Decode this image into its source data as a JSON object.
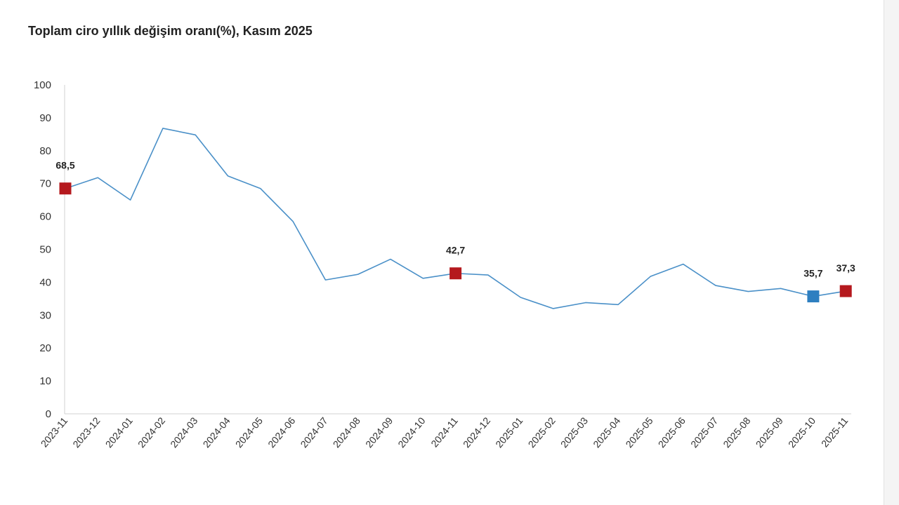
{
  "chart_data": {
    "type": "line",
    "title": "Toplam ciro yıllık değişim oranı(%), Kasım 2025",
    "xlabel": "",
    "ylabel": "",
    "ylim": [
      0,
      100
    ],
    "yticks": [
      0,
      10,
      20,
      30,
      40,
      50,
      60,
      70,
      80,
      90,
      100
    ],
    "categories": [
      "2023-11",
      "2023-12",
      "2024-01",
      "2024-02",
      "2024-03",
      "2024-04",
      "2024-05",
      "2024-06",
      "2024-07",
      "2024-08",
      "2024-09",
      "2024-10",
      "2024-11",
      "2024-12",
      "2025-01",
      "2025-02",
      "2025-03",
      "2025-04",
      "2025-05",
      "2025-06",
      "2025-07",
      "2025-08",
      "2025-09",
      "2025-10",
      "2025-11"
    ],
    "series": [
      {
        "name": "Toplam ciro yıllık değişim oranı",
        "color": "#4a90c8",
        "values": [
          68.5,
          71.8,
          65.0,
          86.8,
          84.8,
          72.3,
          68.5,
          58.5,
          40.7,
          42.4,
          47.0,
          41.2,
          42.7,
          42.2,
          35.4,
          32.0,
          33.8,
          33.2,
          41.8,
          45.5,
          39.0,
          37.2,
          38.1,
          35.7,
          37.3
        ]
      }
    ],
    "markers": [
      {
        "index": 0,
        "label": "68,5",
        "color": "#b5191e"
      },
      {
        "index": 12,
        "label": "42,7",
        "color": "#b5191e"
      },
      {
        "index": 23,
        "label": "35,7",
        "color": "#2e7fc0"
      },
      {
        "index": 24,
        "label": "37,3",
        "color": "#b5191e"
      }
    ],
    "grid": false
  }
}
